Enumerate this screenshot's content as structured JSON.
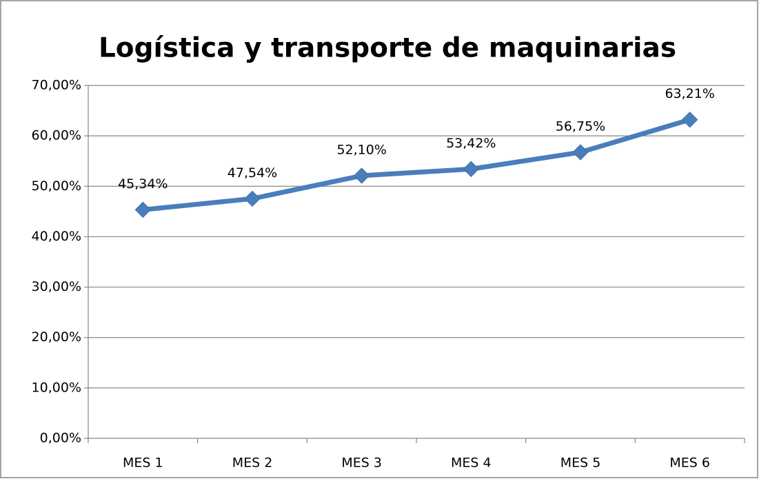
{
  "chart_data": {
    "type": "line",
    "title": "Logística y transporte de maquinarias",
    "categories": [
      "MES 1",
      "MES 2",
      "MES 3",
      "MES 4",
      "MES 5",
      "MES 6"
    ],
    "series": [
      {
        "name": "Logística y transporte de maquinarias",
        "color": "#4a7ebb",
        "values": [
          45.34,
          47.54,
          52.1,
          53.42,
          56.75,
          63.21
        ],
        "value_labels": [
          "45,34%",
          "47,54%",
          "52,10%",
          "53,42%",
          "56,75%",
          "63,21%"
        ]
      }
    ],
    "ylim": [
      0,
      70
    ],
    "yticks": [
      {
        "value": 0,
        "label": "0,00%"
      },
      {
        "value": 10,
        "label": "10,00%"
      },
      {
        "value": 20,
        "label": "20,00%"
      },
      {
        "value": 30,
        "label": "30,00%"
      },
      {
        "value": 40,
        "label": "40,00%"
      },
      {
        "value": 50,
        "label": "50,00%"
      },
      {
        "value": 60,
        "label": "60,00%"
      },
      {
        "value": 70,
        "label": "70,00%"
      }
    ],
    "grid": true,
    "legend": false
  }
}
